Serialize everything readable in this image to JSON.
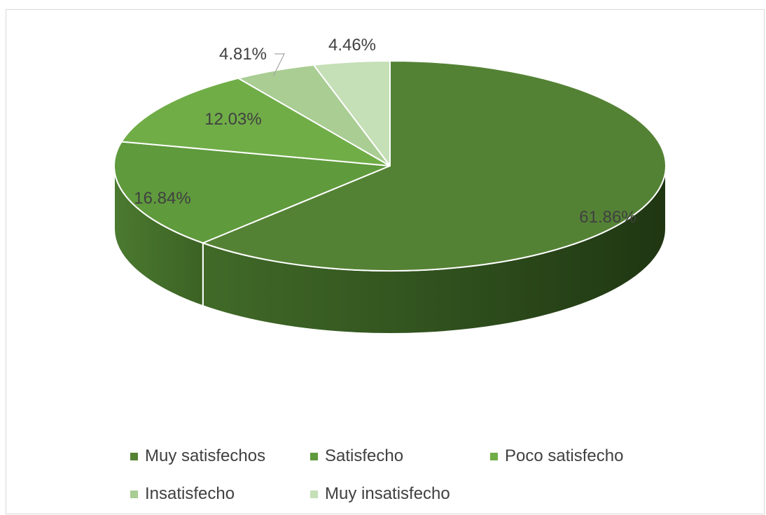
{
  "chart_data": {
    "type": "pie",
    "title": "",
    "labels": [
      "Muy satisfechos",
      "Satisfecho",
      "Poco satisfecho",
      "Insatisfecho",
      "Muy insatisfecho"
    ],
    "values": [
      61.86,
      16.84,
      12.03,
      4.81,
      4.46
    ],
    "value_labels": [
      "61.86%",
      "16.84%",
      "12.03%",
      "4.81%",
      "4.46%"
    ],
    "colors": [
      "#548235",
      "#5f9a3c",
      "#70ad47",
      "#a9cd93",
      "#c5dfb6"
    ],
    "style": "3d",
    "legend_position": "bottom"
  }
}
